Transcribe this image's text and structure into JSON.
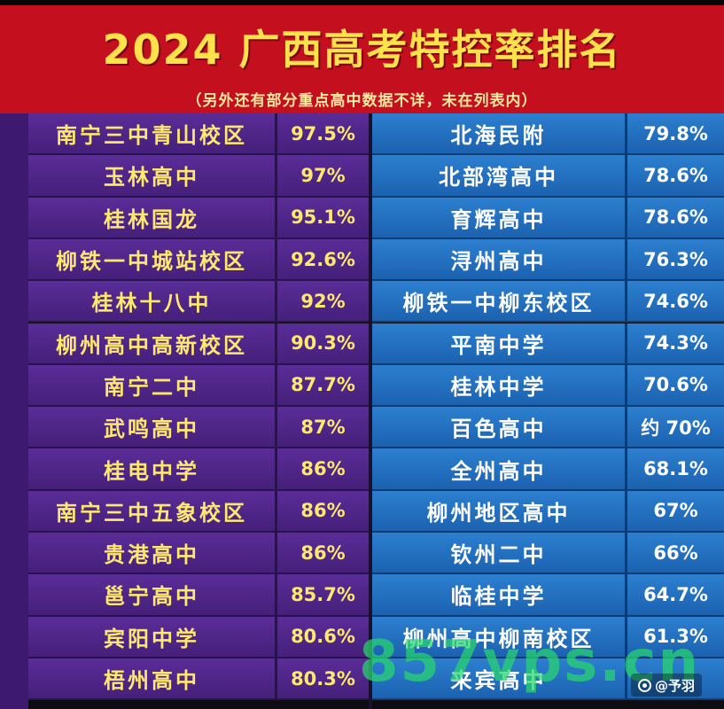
{
  "header": {
    "title": "2024 广西高考特控率排名",
    "subtitle": "（另外还有部分重点高中数据不详，未在列表内）"
  },
  "left_rows": [
    {
      "name": "南宁三中青山校区",
      "value": "97.5%"
    },
    {
      "name": "玉林高中",
      "value": "97%"
    },
    {
      "name": "桂林国龙",
      "value": "95.1%"
    },
    {
      "name": "柳铁一中城站校区",
      "value": "92.6%"
    },
    {
      "name": "桂林十八中",
      "value": "92%"
    },
    {
      "name": "柳州高中高新校区",
      "value": "90.3%"
    },
    {
      "name": "南宁二中",
      "value": "87.7%"
    },
    {
      "name": "武鸣高中",
      "value": "87%"
    },
    {
      "name": "桂电中学",
      "value": "86%"
    },
    {
      "name": "南宁三中五象校区",
      "value": "86%"
    },
    {
      "name": "贵港高中",
      "value": "86%"
    },
    {
      "name": "邕宁高中",
      "value": "85.7%"
    },
    {
      "name": "宾阳中学",
      "value": "80.6%"
    },
    {
      "name": "梧州高中",
      "value": "80.3%"
    }
  ],
  "right_rows": [
    {
      "name": "北海民附",
      "value": "79.8%"
    },
    {
      "name": "北部湾高中",
      "value": "78.6%"
    },
    {
      "name": "育辉高中",
      "value": "78.6%"
    },
    {
      "name": "浔州高中",
      "value": "76.3%"
    },
    {
      "name": "柳铁一中柳东校区",
      "value": "74.6%"
    },
    {
      "name": "平南中学",
      "value": "74.3%"
    },
    {
      "name": "桂林中学",
      "value": "70.6%"
    },
    {
      "name": "百色高中",
      "value": "约 70%"
    },
    {
      "name": "全州高中",
      "value": "68.1%"
    },
    {
      "name": "柳州地区高中",
      "value": "67%"
    },
    {
      "name": "钦州二中",
      "value": "66%"
    },
    {
      "name": "临桂中学",
      "value": "64.7%"
    },
    {
      "name": "柳州高中柳南校区",
      "value": "61.3%"
    },
    {
      "name": "来宾高中",
      "value": ""
    }
  ],
  "watermark": "857vps.cn",
  "badge": "@予羽"
}
